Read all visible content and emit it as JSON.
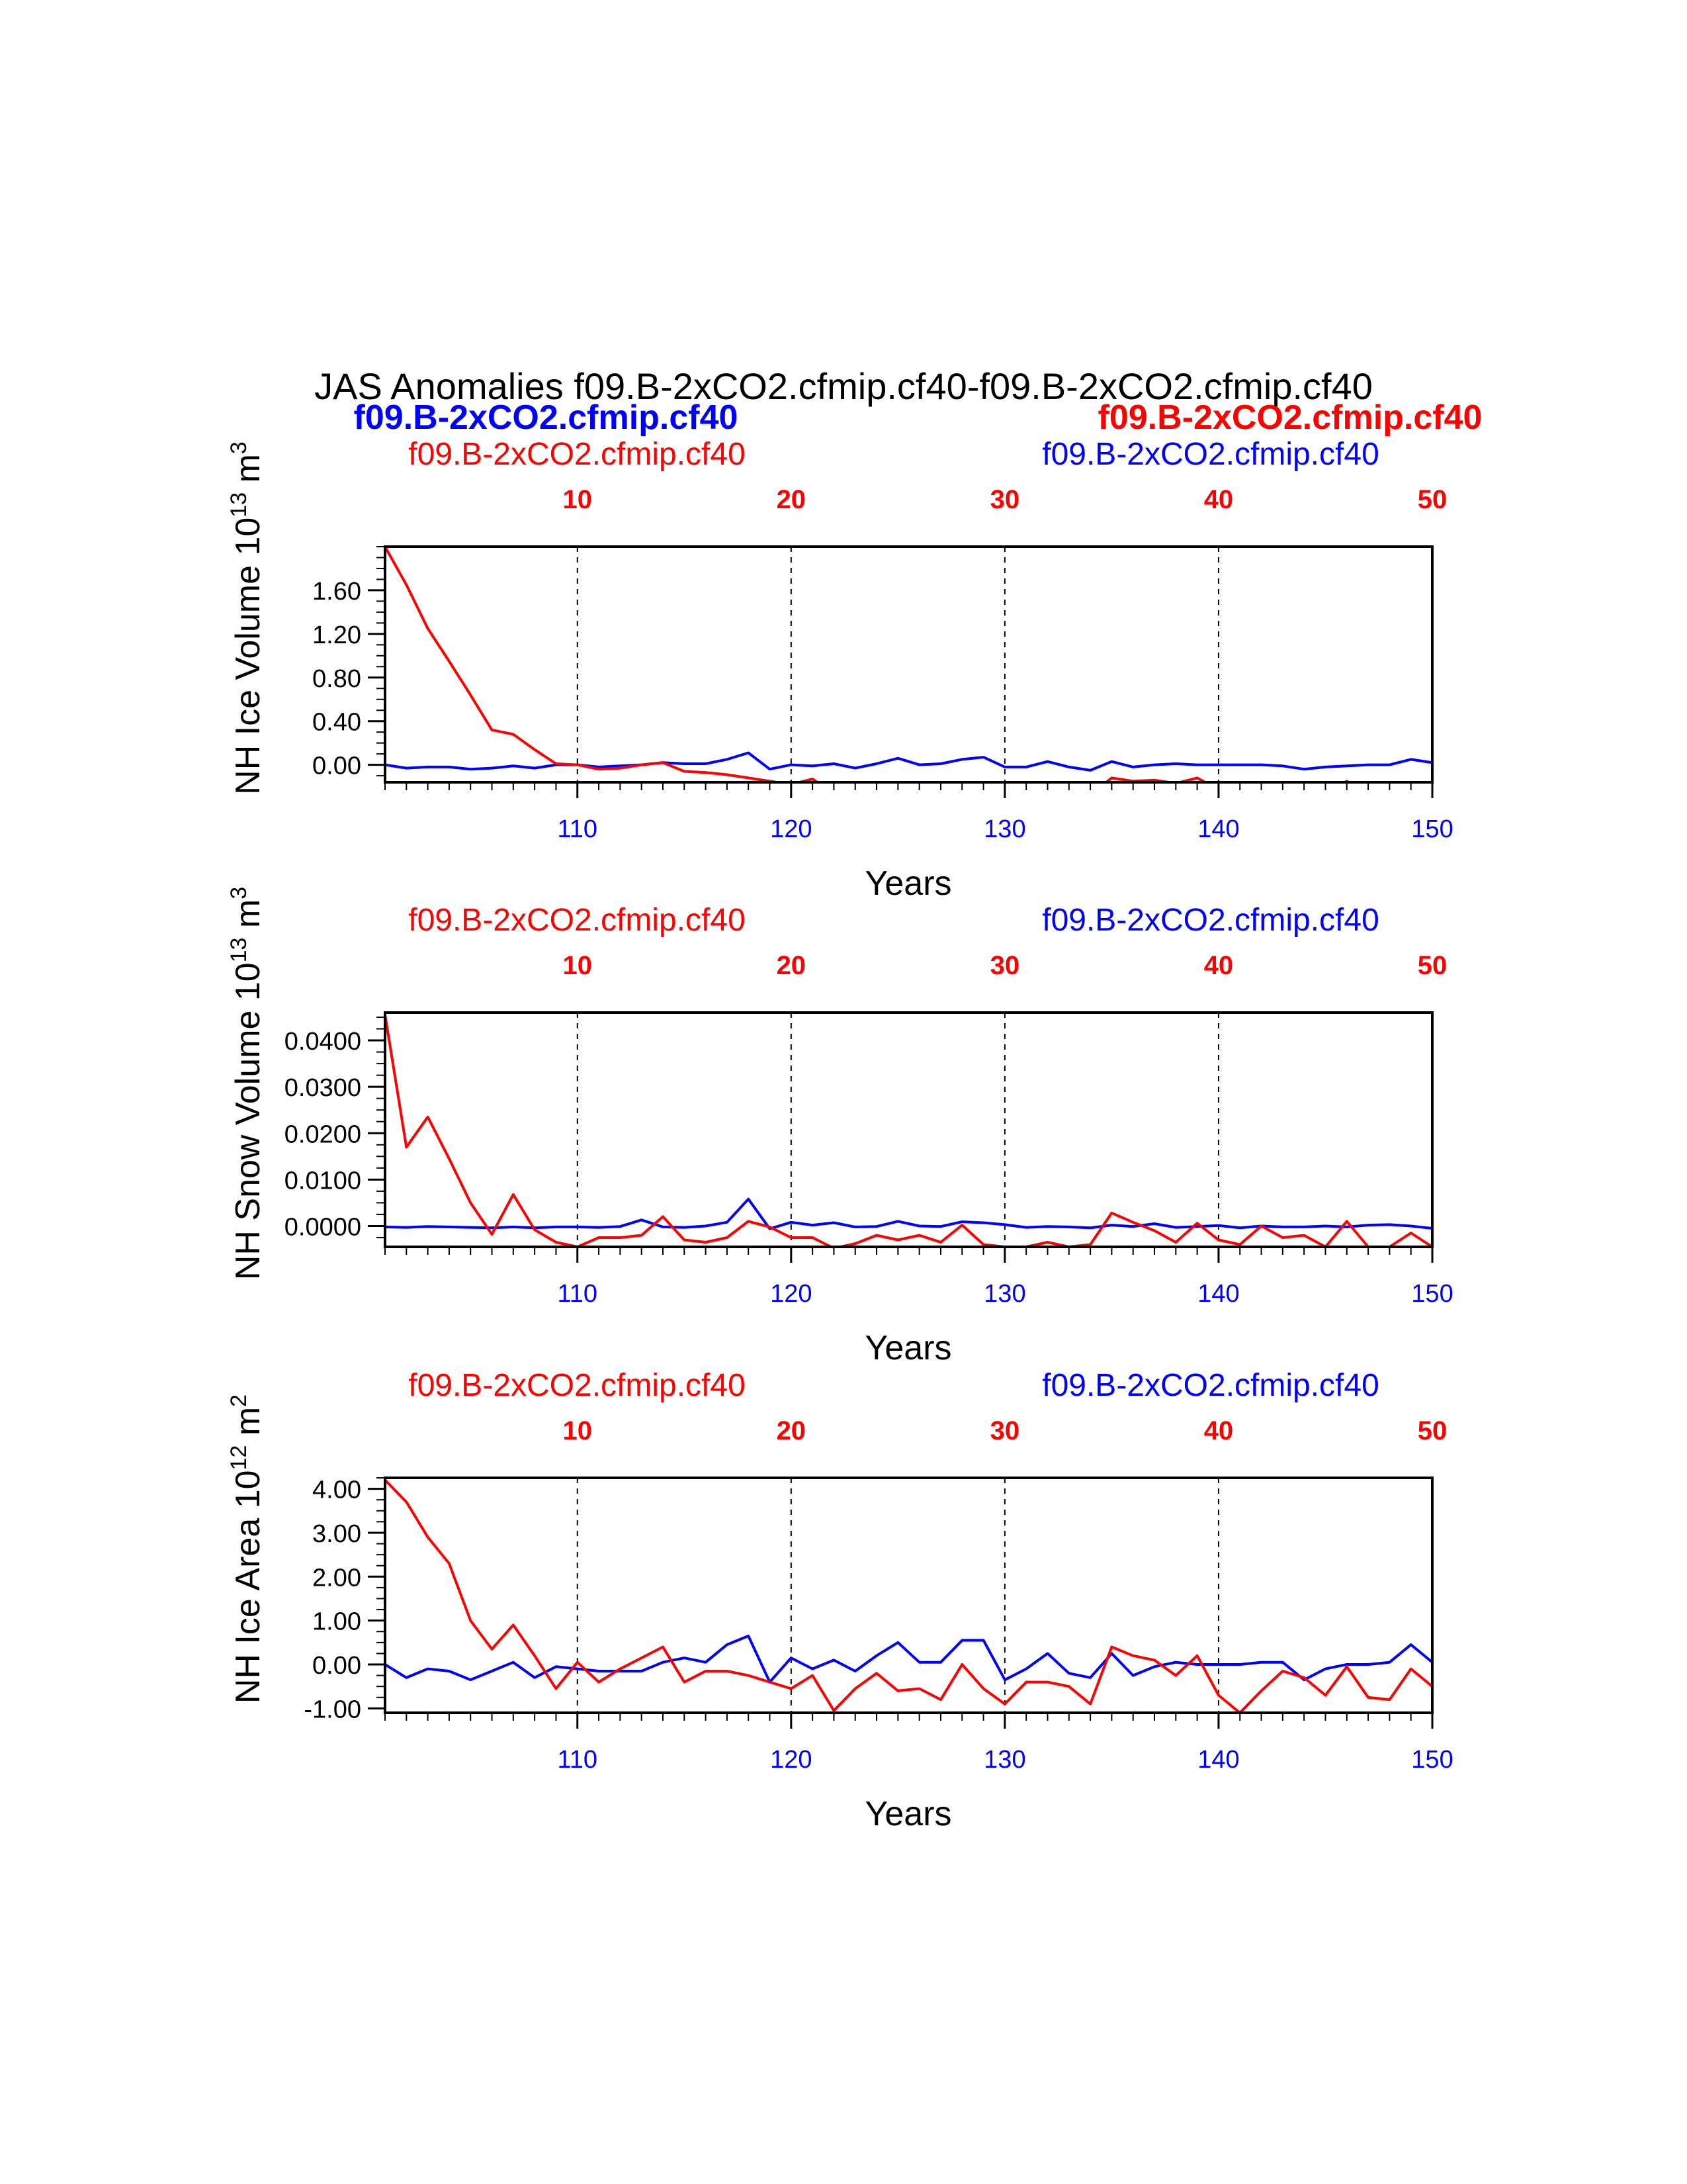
{
  "figure": {
    "main_title": "JAS Anomalies f09.B-2xCO2.cfmip.cf40-f09.B-2xCO2.cfmip.cf40",
    "legend_blue": "f09.B-2xCO2.cfmip.cf40",
    "legend_red": "f09.B-2xCO2.cfmip.cf40"
  },
  "colors": {
    "blue": "#0000ff",
    "red": "#ff0000",
    "axis": "#000000"
  },
  "chart_data": [
    {
      "type": "line",
      "ylabel": "NH Ice Volume 10",
      "ylabel_exp": "13",
      "ylabel_unit": " m",
      "ylabel_unit_exp": "3",
      "xlabel": "Years",
      "top_left_label": "f09.B-2xCO2.cfmip.cf40",
      "top_right_label": "f09.B-2xCO2.cfmip.cf40",
      "ylim": [
        -0.16,
        2.0
      ],
      "yticks": [
        0.0,
        0.4,
        0.8,
        1.2,
        1.6
      ],
      "ytick_labels": [
        "0.00",
        "0.40",
        "0.80",
        "1.20",
        "1.60"
      ],
      "x_bottom": {
        "range": [
          101,
          150
        ],
        "ticks": [
          110,
          120,
          130,
          140,
          150
        ],
        "tick_labels": [
          "110",
          "120",
          "130",
          "140",
          "150"
        ],
        "color": "blue"
      },
      "x_top": {
        "range": [
          1,
          50
        ],
        "ticks": [
          10,
          20,
          30,
          40,
          50
        ],
        "tick_labels": [
          "10",
          "20",
          "30",
          "40",
          "50"
        ],
        "color": "red"
      },
      "grid": "dashed vertical at top ticks",
      "series": [
        {
          "name": "f09.B-2xCO2.cfmip.cf40",
          "color": "blue",
          "axis": "bottom",
          "x": [
            101,
            102,
            103,
            104,
            105,
            106,
            107,
            108,
            109,
            110,
            111,
            112,
            113,
            114,
            115,
            116,
            117,
            118,
            119,
            120,
            121,
            122,
            123,
            124,
            125,
            126,
            127,
            128,
            129,
            130,
            131,
            132,
            133,
            134,
            135,
            136,
            137,
            138,
            139,
            140,
            141,
            142,
            143,
            144,
            145,
            146,
            147,
            148,
            149,
            150
          ],
          "values": [
            0.0,
            -0.03,
            -0.02,
            -0.02,
            -0.04,
            -0.03,
            -0.01,
            -0.03,
            0.0,
            0.0,
            -0.02,
            -0.01,
            0.0,
            0.02,
            0.01,
            0.01,
            0.05,
            0.11,
            -0.04,
            0.0,
            -0.01,
            0.01,
            -0.03,
            0.01,
            0.06,
            0.0,
            0.01,
            0.05,
            0.07,
            -0.02,
            -0.02,
            0.03,
            -0.02,
            -0.05,
            0.03,
            -0.02,
            0.0,
            0.01,
            0.0,
            0.0,
            0.0,
            0.0,
            -0.01,
            -0.04,
            -0.02,
            -0.01,
            0.0,
            0.0,
            0.05,
            0.02
          ]
        },
        {
          "name": "f09.B-2xCO2.cfmip.cf40",
          "color": "red",
          "axis": "top",
          "x": [
            1,
            2,
            3,
            4,
            5,
            6,
            7,
            8,
            9,
            10,
            11,
            12,
            13,
            14,
            15,
            16,
            17,
            18,
            19,
            20,
            21,
            22,
            23,
            24,
            25,
            26,
            27,
            28,
            29,
            30,
            31,
            32,
            33,
            34,
            35,
            36,
            37,
            38,
            39,
            40,
            41,
            42,
            43,
            44,
            45,
            46,
            47,
            48,
            49,
            50
          ],
          "values": [
            2.0,
            1.65,
            1.25,
            0.95,
            0.64,
            0.32,
            0.28,
            0.14,
            0.01,
            0.0,
            -0.04,
            -0.03,
            0.0,
            0.02,
            -0.06,
            -0.07,
            -0.09,
            -0.12,
            -0.15,
            -0.18,
            -0.13,
            -0.26,
            -0.23,
            -0.17,
            -0.21,
            -0.22,
            -0.27,
            -0.17,
            -0.24,
            -0.31,
            -0.24,
            -0.2,
            -0.23,
            -0.28,
            -0.12,
            -0.15,
            -0.14,
            -0.17,
            -0.12,
            -0.23,
            -0.34,
            -0.3,
            -0.19,
            -0.21,
            -0.24,
            -0.15,
            -0.26,
            -0.29,
            -0.19,
            -0.21
          ]
        }
      ]
    },
    {
      "type": "line",
      "ylabel": "NH Snow Volume 10",
      "ylabel_exp": "13",
      "ylabel_unit": " m",
      "ylabel_unit_exp": "3",
      "xlabel": "Years",
      "top_left_label": "f09.B-2xCO2.cfmip.cf40",
      "top_right_label": "f09.B-2xCO2.cfmip.cf40",
      "ylim": [
        -0.0045,
        0.046
      ],
      "yticks": [
        0.0,
        0.01,
        0.02,
        0.03,
        0.04
      ],
      "ytick_labels": [
        "0.0000",
        "0.0100",
        "0.0200",
        "0.0300",
        "0.0400"
      ],
      "x_bottom": {
        "range": [
          101,
          150
        ],
        "ticks": [
          110,
          120,
          130,
          140,
          150
        ],
        "tick_labels": [
          "110",
          "120",
          "130",
          "140",
          "150"
        ],
        "color": "blue"
      },
      "x_top": {
        "range": [
          1,
          50
        ],
        "ticks": [
          10,
          20,
          30,
          40,
          50
        ],
        "tick_labels": [
          "10",
          "20",
          "30",
          "40",
          "50"
        ],
        "color": "red"
      },
      "grid": "dashed vertical at top ticks",
      "series": [
        {
          "name": "f09.B-2xCO2.cfmip.cf40",
          "color": "blue",
          "axis": "bottom",
          "x": [
            101,
            102,
            103,
            104,
            105,
            106,
            107,
            108,
            109,
            110,
            111,
            112,
            113,
            114,
            115,
            116,
            117,
            118,
            119,
            120,
            121,
            122,
            123,
            124,
            125,
            126,
            127,
            128,
            129,
            130,
            131,
            132,
            133,
            134,
            135,
            136,
            137,
            138,
            139,
            140,
            141,
            142,
            143,
            144,
            145,
            146,
            147,
            148,
            149,
            150
          ],
          "values": [
            -0.0002,
            -0.0003,
            -0.0001,
            -0.0002,
            -0.0003,
            -0.0004,
            -0.0002,
            -0.0004,
            -0.0002,
            -0.0002,
            -0.0003,
            -0.0001,
            0.0013,
            -0.0002,
            -0.0003,
            0.0,
            0.0008,
            0.0058,
            -0.0006,
            0.0008,
            0.0002,
            0.0007,
            -0.0002,
            -0.0001,
            0.001,
            0.0,
            -0.0001,
            0.0009,
            0.0007,
            0.0003,
            -0.0003,
            -0.0001,
            -0.0002,
            -0.0004,
            0.0002,
            -0.0001,
            0.0005,
            -0.0003,
            -0.0001,
            0.0001,
            -0.0004,
            0.0,
            -0.0002,
            -0.0002,
            0.0,
            -0.0002,
            0.0002,
            0.0003,
            0.0,
            -0.0005
          ]
        },
        {
          "name": "f09.B-2xCO2.cfmip.cf40",
          "color": "red",
          "axis": "top",
          "x": [
            1,
            2,
            3,
            4,
            5,
            6,
            7,
            8,
            9,
            10,
            11,
            12,
            13,
            14,
            15,
            16,
            17,
            18,
            19,
            20,
            21,
            22,
            23,
            24,
            25,
            26,
            27,
            28,
            29,
            30,
            31,
            32,
            33,
            34,
            35,
            36,
            37,
            38,
            39,
            40,
            41,
            42,
            43,
            44,
            45,
            46,
            47,
            48,
            49,
            50
          ],
          "values": [
            0.0455,
            0.017,
            0.0235,
            0.0145,
            0.005,
            -0.0018,
            0.0068,
            -0.0008,
            -0.0035,
            -0.0045,
            -0.0025,
            -0.0025,
            -0.002,
            0.002,
            -0.003,
            -0.0035,
            -0.0025,
            0.001,
            -0.0002,
            -0.0025,
            -0.0025,
            -0.0048,
            -0.0038,
            -0.002,
            -0.003,
            -0.002,
            -0.0035,
            0.0002,
            -0.004,
            -0.0045,
            -0.0045,
            -0.0035,
            -0.0045,
            -0.004,
            0.0028,
            0.0008,
            -0.001,
            -0.0035,
            0.0006,
            -0.003,
            -0.004,
            0.0,
            -0.0025,
            -0.002,
            -0.0045,
            0.001,
            -0.0045,
            -0.0045,
            -0.0015,
            -0.0045
          ]
        }
      ]
    },
    {
      "type": "line",
      "ylabel": "NH Ice Area 10",
      "ylabel_exp": "12",
      "ylabel_unit": " m",
      "ylabel_unit_exp": "2",
      "xlabel": "Years",
      "top_left_label": "f09.B-2xCO2.cfmip.cf40",
      "top_right_label": "f09.B-2xCO2.cfmip.cf40",
      "ylim": [
        -1.1,
        4.25
      ],
      "yticks": [
        -1.0,
        0.0,
        1.0,
        2.0,
        3.0,
        4.0
      ],
      "ytick_labels": [
        "-1.00",
        "0.00",
        "1.00",
        "2.00",
        "3.00",
        "4.00"
      ],
      "x_bottom": {
        "range": [
          101,
          150
        ],
        "ticks": [
          110,
          120,
          130,
          140,
          150
        ],
        "tick_labels": [
          "110",
          "120",
          "130",
          "140",
          "150"
        ],
        "color": "blue"
      },
      "x_top": {
        "range": [
          1,
          50
        ],
        "ticks": [
          10,
          20,
          30,
          40,
          50
        ],
        "tick_labels": [
          "10",
          "20",
          "30",
          "40",
          "50"
        ],
        "color": "red"
      },
      "grid": "dashed vertical at top ticks",
      "series": [
        {
          "name": "f09.B-2xCO2.cfmip.cf40",
          "color": "blue",
          "axis": "bottom",
          "x": [
            101,
            102,
            103,
            104,
            105,
            106,
            107,
            108,
            109,
            110,
            111,
            112,
            113,
            114,
            115,
            116,
            117,
            118,
            119,
            120,
            121,
            122,
            123,
            124,
            125,
            126,
            127,
            128,
            129,
            130,
            131,
            132,
            133,
            134,
            135,
            136,
            137,
            138,
            139,
            140,
            141,
            142,
            143,
            144,
            145,
            146,
            147,
            148,
            149,
            150
          ],
          "values": [
            0.0,
            -0.3,
            -0.1,
            -0.15,
            -0.35,
            -0.15,
            0.05,
            -0.3,
            -0.05,
            -0.1,
            -0.15,
            -0.15,
            -0.15,
            0.05,
            0.15,
            0.05,
            0.45,
            0.65,
            -0.4,
            0.15,
            -0.1,
            0.1,
            -0.15,
            0.2,
            0.5,
            0.05,
            0.05,
            0.55,
            0.55,
            -0.35,
            -0.1,
            0.25,
            -0.2,
            -0.3,
            0.25,
            -0.25,
            -0.05,
            0.05,
            0.0,
            0.0,
            0.0,
            0.05,
            0.05,
            -0.35,
            -0.1,
            0.0,
            0.0,
            0.05,
            0.45,
            0.05
          ]
        },
        {
          "name": "f09.B-2xCO2.cfmip.cf40",
          "color": "red",
          "axis": "top",
          "x": [
            1,
            2,
            3,
            4,
            5,
            6,
            7,
            8,
            9,
            10,
            11,
            12,
            13,
            14,
            15,
            16,
            17,
            18,
            19,
            20,
            21,
            22,
            23,
            24,
            25,
            26,
            27,
            28,
            29,
            30,
            31,
            32,
            33,
            34,
            35,
            36,
            37,
            38,
            39,
            40,
            41,
            42,
            43,
            44,
            45,
            46,
            47,
            48,
            49,
            50
          ],
          "values": [
            4.2,
            3.7,
            2.9,
            2.3,
            1.0,
            0.35,
            0.9,
            0.2,
            -0.55,
            0.05,
            -0.4,
            -0.1,
            0.15,
            0.4,
            -0.4,
            -0.15,
            -0.15,
            -0.25,
            -0.4,
            -0.55,
            -0.25,
            -1.05,
            -0.55,
            -0.2,
            -0.6,
            -0.55,
            -0.8,
            0.0,
            -0.55,
            -0.9,
            -0.4,
            -0.4,
            -0.5,
            -0.9,
            0.4,
            0.2,
            0.1,
            -0.25,
            0.2,
            -0.7,
            -1.1,
            -0.6,
            -0.15,
            -0.3,
            -0.7,
            -0.05,
            -0.75,
            -0.8,
            -0.1,
            -0.5
          ]
        }
      ]
    }
  ]
}
